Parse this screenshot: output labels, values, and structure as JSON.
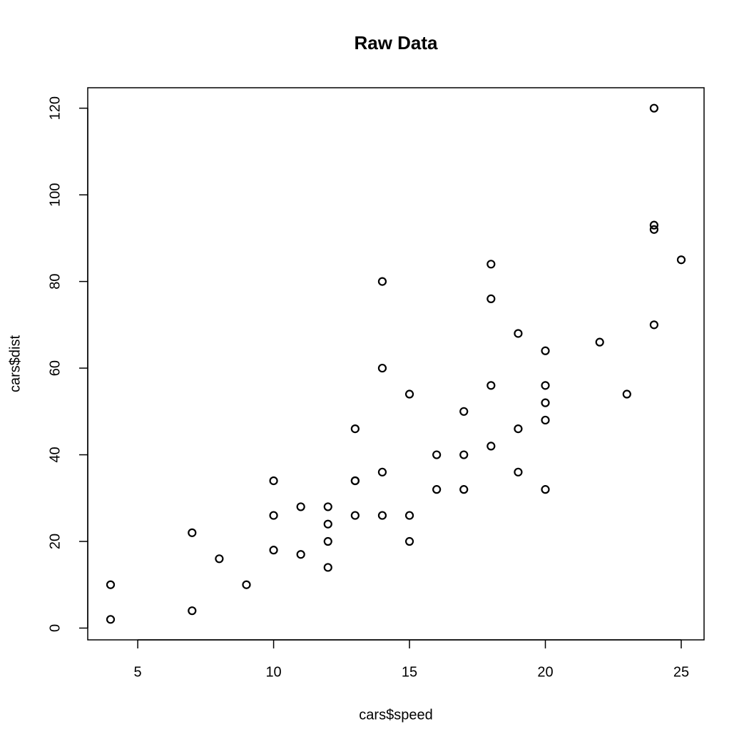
{
  "chart_data": {
    "type": "scatter",
    "title": "Raw Data",
    "x_label": "cars$speed",
    "y_label": "cars$dist",
    "x": [
      4,
      4,
      7,
      7,
      8,
      9,
      10,
      10,
      10,
      11,
      11,
      12,
      12,
      12,
      12,
      13,
      13,
      13,
      13,
      14,
      14,
      14,
      14,
      15,
      15,
      15,
      16,
      16,
      17,
      17,
      17,
      18,
      18,
      18,
      18,
      19,
      19,
      19,
      20,
      20,
      20,
      20,
      20,
      22,
      23,
      24,
      24,
      24,
      24,
      25
    ],
    "values": [
      2,
      10,
      4,
      22,
      16,
      10,
      18,
      26,
      34,
      17,
      28,
      14,
      20,
      24,
      28,
      26,
      34,
      34,
      46,
      26,
      36,
      60,
      80,
      20,
      26,
      54,
      32,
      40,
      32,
      40,
      50,
      42,
      56,
      76,
      84,
      36,
      46,
      68,
      32,
      48,
      52,
      56,
      64,
      66,
      54,
      70,
      92,
      93,
      120,
      85
    ],
    "color": "#000000",
    "xlim": [
      3.16,
      25.84
    ],
    "ylim": [
      -2.72,
      124.72
    ],
    "xticks": [
      5,
      10,
      15,
      20,
      25
    ],
    "yticks": [
      0,
      20,
      40,
      60,
      80,
      100,
      120
    ]
  }
}
